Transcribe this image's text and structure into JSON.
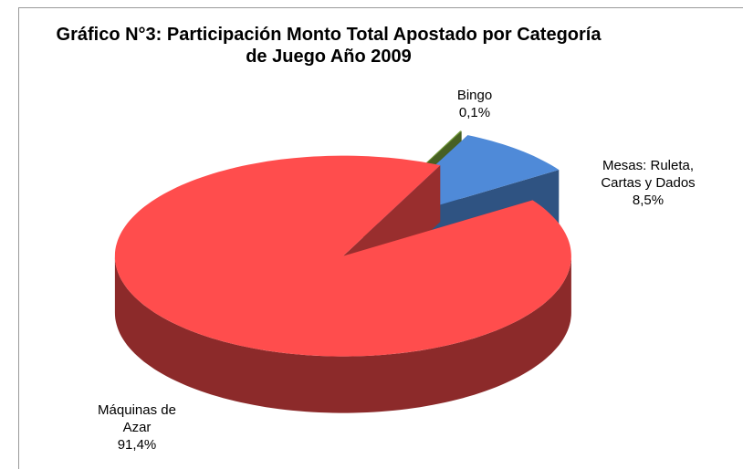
{
  "chart_data": {
    "type": "pie3d",
    "title": "Gráfico N°3: Participación Monto Total Apostado por Categoría de Juego Año 2009",
    "categories": [
      "Bingo",
      "Mesas: Ruleta, Cartas y Dados",
      "Máquinas de Azar"
    ],
    "values": [
      0.1,
      8.5,
      91.4
    ],
    "value_labels": [
      "0,1%",
      "8,5%",
      "91,4%"
    ],
    "colors": [
      "#77a03a",
      "#4f8ad8",
      "#ff4d4d"
    ]
  }
}
